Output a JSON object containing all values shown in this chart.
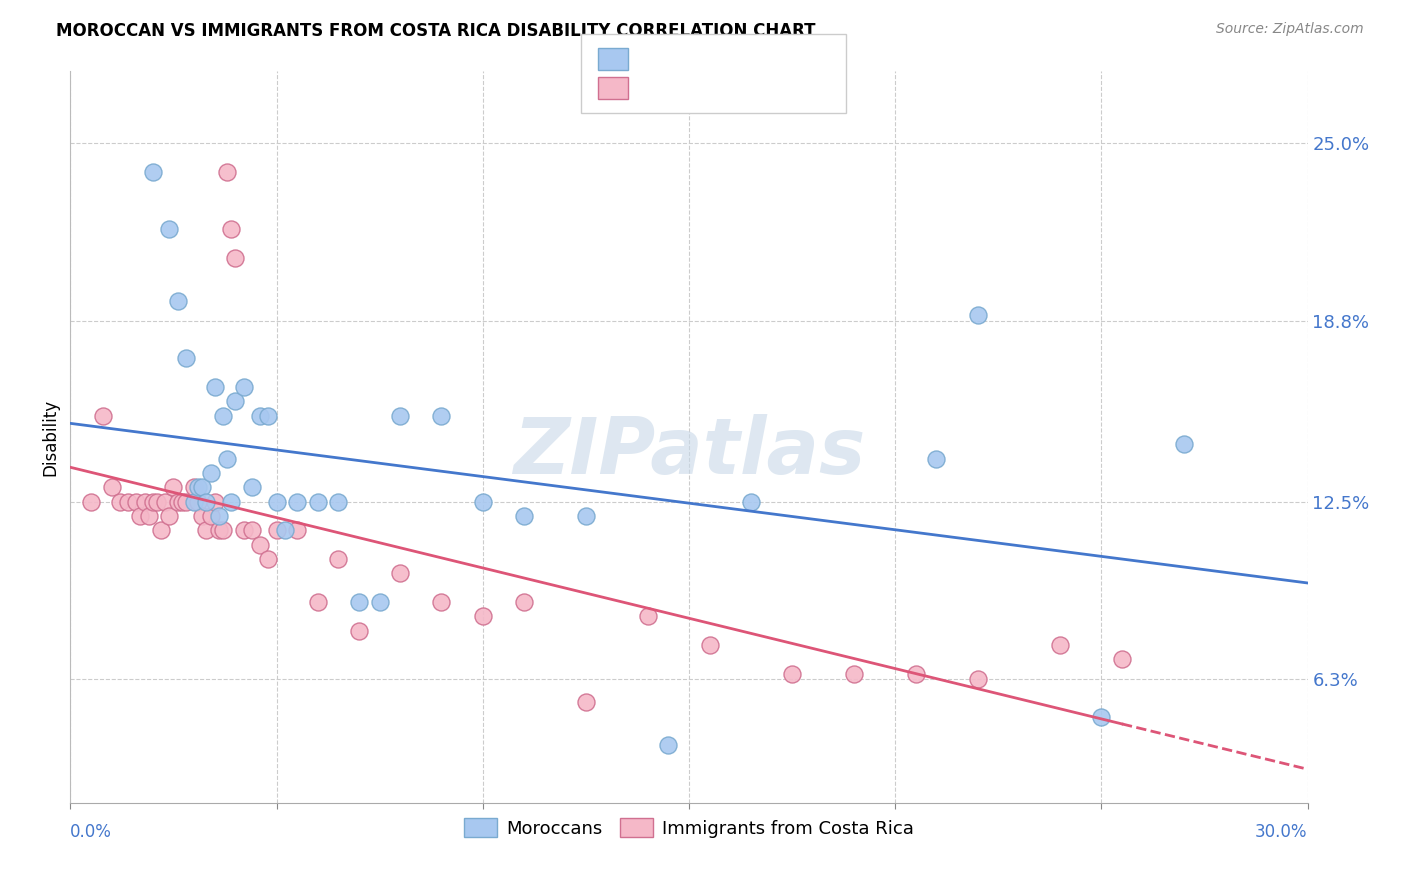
{
  "title": "MOROCCAN VS IMMIGRANTS FROM COSTA RICA DISABILITY CORRELATION CHART",
  "source": "Source: ZipAtlas.com",
  "ylabel": "Disability",
  "ytick_values": [
    0.063,
    0.125,
    0.188,
    0.25
  ],
  "ytick_labels": [
    "6.3%",
    "12.5%",
    "18.8%",
    "25.0%"
  ],
  "xlim": [
    0.0,
    0.3
  ],
  "ylim": [
    0.02,
    0.275
  ],
  "moroccan_color": "#a8c8f0",
  "moroccan_edge": "#7aaad0",
  "costa_rica_color": "#f5b8c8",
  "costa_rica_edge": "#d07090",
  "line_blue": "#4477cc",
  "line_pink": "#dd5577",
  "watermark": "ZIPatlas",
  "watermark_color": "#c8d8e8",
  "moroccan_x": [
    0.02,
    0.024,
    0.026,
    0.028,
    0.03,
    0.031,
    0.032,
    0.033,
    0.034,
    0.035,
    0.036,
    0.037,
    0.038,
    0.039,
    0.04,
    0.042,
    0.044,
    0.046,
    0.048,
    0.05,
    0.052,
    0.055,
    0.06,
    0.065,
    0.07,
    0.075,
    0.08,
    0.09,
    0.1,
    0.11,
    0.125,
    0.145,
    0.165,
    0.21,
    0.22,
    0.25,
    0.27
  ],
  "moroccan_y": [
    0.24,
    0.22,
    0.195,
    0.175,
    0.125,
    0.13,
    0.13,
    0.125,
    0.135,
    0.165,
    0.12,
    0.155,
    0.14,
    0.125,
    0.16,
    0.165,
    0.13,
    0.155,
    0.155,
    0.125,
    0.115,
    0.125,
    0.125,
    0.125,
    0.09,
    0.09,
    0.155,
    0.155,
    0.125,
    0.12,
    0.12,
    0.04,
    0.125,
    0.14,
    0.19,
    0.05,
    0.145
  ],
  "costa_rica_x": [
    0.005,
    0.008,
    0.01,
    0.012,
    0.014,
    0.016,
    0.017,
    0.018,
    0.019,
    0.02,
    0.021,
    0.022,
    0.023,
    0.024,
    0.025,
    0.026,
    0.027,
    0.028,
    0.03,
    0.031,
    0.032,
    0.033,
    0.034,
    0.035,
    0.036,
    0.037,
    0.038,
    0.039,
    0.04,
    0.042,
    0.044,
    0.046,
    0.048,
    0.05,
    0.055,
    0.06,
    0.065,
    0.07,
    0.08,
    0.09,
    0.1,
    0.11,
    0.125,
    0.14,
    0.155,
    0.175,
    0.19,
    0.205,
    0.22,
    0.24,
    0.255
  ],
  "costa_rica_y": [
    0.125,
    0.155,
    0.13,
    0.125,
    0.125,
    0.125,
    0.12,
    0.125,
    0.12,
    0.125,
    0.125,
    0.115,
    0.125,
    0.12,
    0.13,
    0.125,
    0.125,
    0.125,
    0.13,
    0.125,
    0.12,
    0.115,
    0.12,
    0.125,
    0.115,
    0.115,
    0.24,
    0.22,
    0.21,
    0.115,
    0.115,
    0.11,
    0.105,
    0.115,
    0.115,
    0.09,
    0.105,
    0.08,
    0.1,
    0.09,
    0.085,
    0.09,
    0.055,
    0.085,
    0.075,
    0.065,
    0.065,
    0.065,
    0.063,
    0.075,
    0.07
  ]
}
